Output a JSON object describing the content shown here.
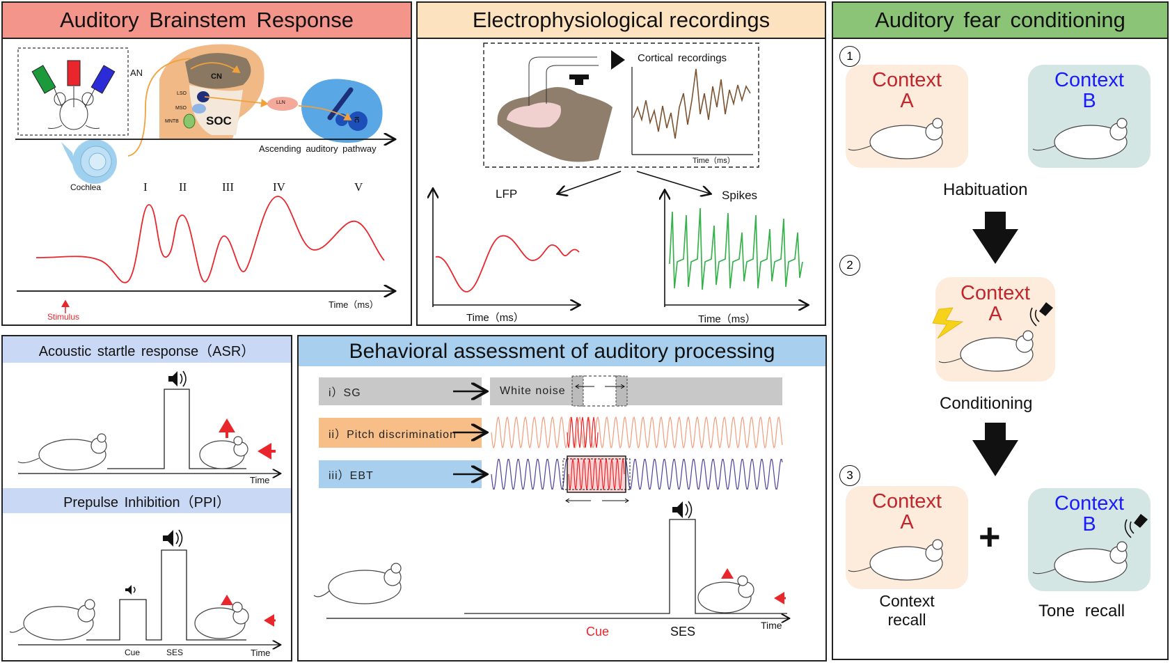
{
  "colors": {
    "abr_head": "#f3958b",
    "ephys_head": "#fde2c0",
    "fear_head": "#8bc477",
    "asr_head": "#c9d9f5",
    "beh_head": "#a8d0ee",
    "red": "#e8262c",
    "green": "#35b24a",
    "brown": "#7a5230",
    "blue": "#1a1aff",
    "ctxA_bg": "#fdecdc",
    "ctxB_bg": "#d4e6e3"
  },
  "abr": {
    "title": "Auditory Brainstem Response",
    "an": "AN",
    "cn": "CN",
    "lso": "LSO",
    "mso": "MSO",
    "mntb": "MNTB",
    "soc": "SOC",
    "lln": "LLN",
    "ic": "IC",
    "pathway": "Ascending auditory pathway",
    "cochlea": "Cochlea",
    "peaks": [
      "I",
      "II",
      "III",
      "IV",
      "V"
    ],
    "time": "Time（ms）",
    "stimulus": "Stimulus"
  },
  "ephys": {
    "title": "Electrophysiological recordings",
    "cortical": "Cortical recordings",
    "time_small": "Time（ms）",
    "lfp": "LFP",
    "spikes": "Spikes",
    "time_lfp": "Time（ms）",
    "time_spikes": "Time（ms）"
  },
  "fear": {
    "title": "Auditory fear conditioning",
    "step1": "1",
    "step2": "2",
    "step3": "3",
    "context": "Context",
    "a": "A",
    "b": "B",
    "habituation": "Habituation",
    "conditioning": "Conditioning",
    "plus": "+",
    "context_recall": "Context\nrecall",
    "tone_recall": "Tone recall"
  },
  "asr": {
    "title": "Acoustic startle response（ASR）",
    "time": "Time"
  },
  "ppi": {
    "title": "Prepulse Inhibition（PPI）",
    "cue": "Cue",
    "ses": "SES",
    "time": "Time"
  },
  "beh": {
    "title": "Behavioral assessment of auditory processing",
    "sg": "i）SG",
    "white_noise": "White noise",
    "pitch": "ii）Pitch discrimination",
    "ebt": "iii）EBT",
    "cue": "Cue",
    "ses": "SES",
    "time": "Time"
  }
}
